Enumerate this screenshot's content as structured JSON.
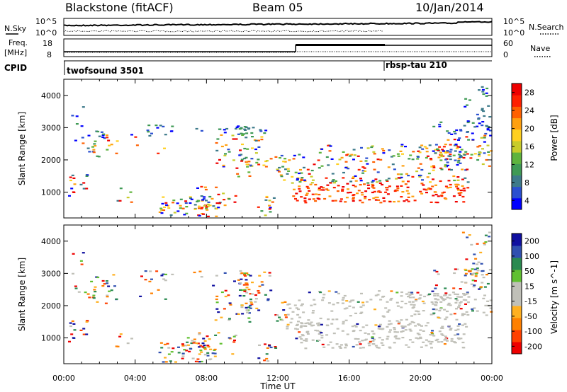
{
  "header": {
    "station": "Blackstone (fitACF)",
    "beam": "Beam 05",
    "date": "10/Jan/2014"
  },
  "top_panels": {
    "nsky_label": "N.Sky",
    "nsky_scale_top": "10^5",
    "nsky_scale_bottom": "10^0",
    "nsky_right_top": "10^5",
    "nsky_right_bottom": "10^0",
    "nsearch_label": "N.Search",
    "freq_label": "Freq.",
    "freq_unit": "[MHz]",
    "freq_ticks": [
      "18",
      "8"
    ],
    "nave_label": "Nave",
    "nave_ticks": [
      "60",
      "0"
    ],
    "cpid_label": "CPID",
    "cpid_programs": [
      {
        "name": "twofsound 3501",
        "start_hour": 0
      },
      {
        "name": "rbsp-tau 210",
        "start_hour": 18
      }
    ]
  },
  "chart_data": [
    {
      "type": "heatmap",
      "title": "",
      "ylabel": "Slant Range [km]",
      "xlabel": "",
      "xlim_hours": [
        0,
        24
      ],
      "ylim": [
        200,
        4500
      ],
      "y_ticks": [
        "1000",
        "2000",
        "3000",
        "4000"
      ],
      "colorbar": {
        "label": "Power [dB]",
        "ticks": [
          "28",
          "24",
          "20",
          "16",
          "12",
          "8",
          "4"
        ],
        "range": [
          0,
          30
        ],
        "colors": [
          "#0000ff",
          "#2a4fd0",
          "#3d7a8a",
          "#3f9a55",
          "#5fb33d",
          "#c8cc2a",
          "#ffd020",
          "#ffa010",
          "#ff6000",
          "#ff2000",
          "#ee0000"
        ]
      }
    },
    {
      "type": "heatmap",
      "title": "",
      "ylabel": "Slant Range [km]",
      "xlabel": "Time UT",
      "xlim_hours": [
        0,
        24
      ],
      "ylim": [
        200,
        4500
      ],
      "y_ticks": [
        "1000",
        "2000",
        "3000",
        "4000"
      ],
      "x_ticks": [
        "00:00",
        "04:00",
        "08:00",
        "12:00",
        "16:00",
        "20:00",
        "00:00"
      ],
      "colorbar": {
        "label": "Velocity [m s^-1]",
        "ticks": [
          "200",
          "100",
          "50",
          "15",
          "-15",
          "-50",
          "-100",
          "-200"
        ],
        "range": [
          -250,
          250
        ],
        "colors": [
          "#ee0000",
          "#ff4000",
          "#ff8000",
          "#ffb020",
          "#c0c0b8",
          "#c0c0b8",
          "#60c030",
          "#2a8a50",
          "#3050b0",
          "#1010a0"
        ]
      }
    }
  ],
  "colors": {
    "ground_scatter": "#c0c0b8",
    "background": "#ffffff",
    "axis": "#000000"
  }
}
